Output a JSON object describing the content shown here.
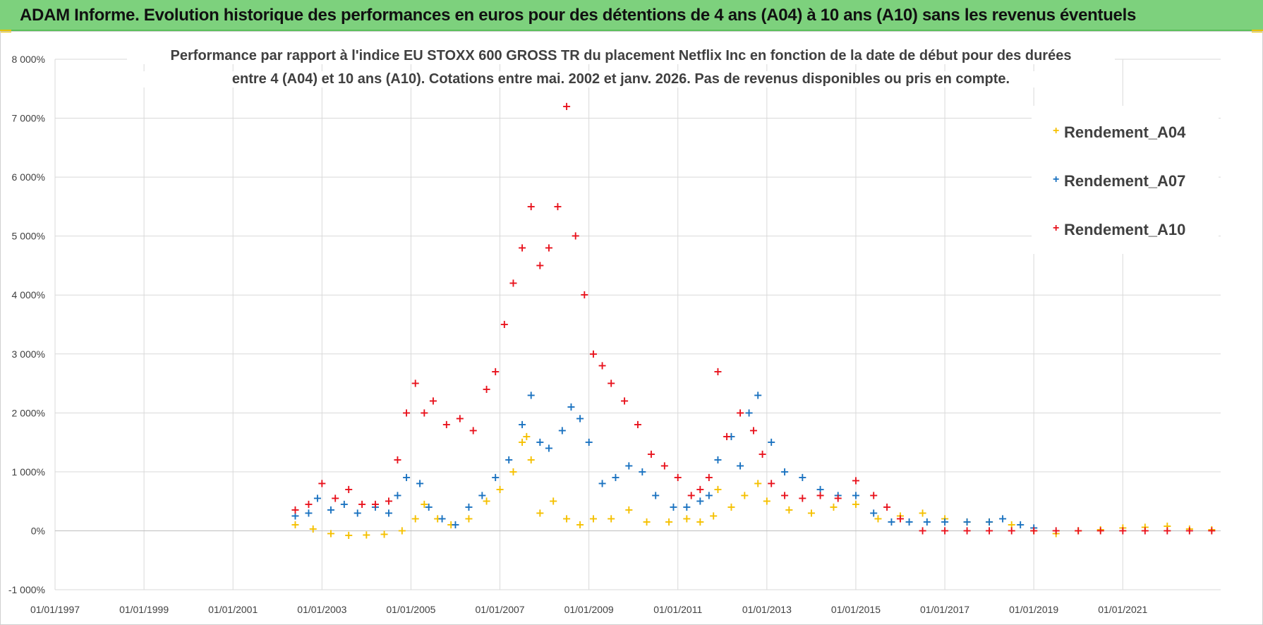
{
  "header": {
    "title": "ADAM Informe. Evolution historique des performances en euros pour des détentions de 4 ans (A04) à 10 ans (A10) sans les revenus éventuels"
  },
  "colors": {
    "a04": "#f5c000",
    "a07": "#1a72c0",
    "a10": "#e8121c",
    "grid": "#d9d9d9",
    "banner": "#7dd17d"
  },
  "chart_data": {
    "type": "scatter",
    "title_line1": "Performance par rapport à l'indice EU STOXX 600 GROSS TR  du placement Netflix Inc en fonction de la date de début pour des durées",
    "title_line2": "entre 4 (A04) et 10 ans (A10).  Cotations entre mai. 2002 et janv. 2026.  Pas de revenus disponibles ou pris en compte.",
    "xlabel": "",
    "ylabel": "",
    "xlim": [
      1997.0,
      2023.2
    ],
    "ylim": [
      -1000,
      8000
    ],
    "y_ticks": [
      -1000,
      0,
      1000,
      2000,
      3000,
      4000,
      5000,
      6000,
      7000,
      8000
    ],
    "y_tick_labels": [
      "-1 000%",
      "0%",
      "1 000%",
      "2 000%",
      "3 000%",
      "4 000%",
      "5 000%",
      "6 000%",
      "7 000%",
      "8 000%"
    ],
    "x_ticks": [
      1997,
      1999,
      2001,
      2003,
      2005,
      2007,
      2009,
      2011,
      2013,
      2015,
      2017,
      2019,
      2021
    ],
    "x_tick_labels": [
      "01/01/1997",
      "01/01/1999",
      "01/01/2001",
      "01/01/2003",
      "01/01/2005",
      "01/01/2007",
      "01/01/2009",
      "01/01/2011",
      "01/01/2013",
      "01/01/2015",
      "01/01/2017",
      "01/01/2019",
      "01/01/2021"
    ],
    "legend_position": "top-right",
    "series": [
      {
        "name": "Rendement_A04",
        "x": [
          2002.4,
          2002.8,
          2003.2,
          2003.6,
          2004.0,
          2004.4,
          2004.8,
          2005.1,
          2005.3,
          2005.6,
          2005.9,
          2006.3,
          2006.7,
          2007.0,
          2007.3,
          2007.5,
          2007.6,
          2007.7,
          2007.9,
          2008.2,
          2008.5,
          2008.8,
          2009.1,
          2009.5,
          2009.9,
          2010.3,
          2010.8,
          2011.2,
          2011.5,
          2011.8,
          2011.9,
          2012.2,
          2012.5,
          2012.8,
          2013.0,
          2013.5,
          2014.0,
          2014.5,
          2015.0,
          2015.5,
          2016.0,
          2016.5,
          2017.0,
          2017.5,
          2018.0,
          2018.5,
          2019.0,
          2019.5,
          2020.0,
          2020.5,
          2021.0,
          2021.5,
          2022.0,
          2022.5,
          2023.0
        ],
        "values": [
          100,
          30,
          -50,
          -80,
          -70,
          -60,
          0,
          200,
          450,
          200,
          100,
          200,
          500,
          700,
          1000,
          1500,
          1600,
          1200,
          300,
          500,
          200,
          100,
          200,
          200,
          350,
          150,
          150,
          200,
          150,
          250,
          700,
          400,
          600,
          800,
          500,
          350,
          300,
          400,
          450,
          200,
          250,
          300,
          200,
          150,
          150,
          100,
          0,
          -50,
          0,
          20,
          50,
          60,
          80,
          30,
          20
        ]
      },
      {
        "name": "Rendement_A07",
        "x": [
          2002.4,
          2002.7,
          2002.9,
          2003.2,
          2003.5,
          2003.8,
          2004.2,
          2004.5,
          2004.7,
          2004.9,
          2005.2,
          2005.4,
          2005.7,
          2006.0,
          2006.3,
          2006.6,
          2006.9,
          2007.2,
          2007.5,
          2007.7,
          2007.9,
          2008.1,
          2008.4,
          2008.6,
          2008.8,
          2009.0,
          2009.3,
          2009.6,
          2009.9,
          2010.2,
          2010.5,
          2010.9,
          2011.2,
          2011.5,
          2011.7,
          2011.9,
          2012.2,
          2012.4,
          2012.6,
          2012.8,
          2013.1,
          2013.4,
          2013.8,
          2014.2,
          2014.6,
          2015.0,
          2015.4,
          2015.8,
          2016.2,
          2016.6,
          2017.0,
          2017.5,
          2018.0,
          2018.3,
          2018.7,
          2019.0
        ],
        "values": [
          250,
          300,
          550,
          350,
          450,
          300,
          400,
          300,
          600,
          900,
          800,
          400,
          200,
          100,
          400,
          600,
          900,
          1200,
          1800,
          2300,
          1500,
          1400,
          1700,
          2100,
          1900,
          1500,
          800,
          900,
          1100,
          1000,
          600,
          400,
          400,
          500,
          600,
          1200,
          1600,
          1100,
          2000,
          2300,
          1500,
          1000,
          900,
          700,
          600,
          600,
          300,
          150,
          150,
          150,
          150,
          150,
          150,
          200,
          100,
          50
        ]
      },
      {
        "name": "Rendement_A10",
        "x": [
          2002.4,
          2002.7,
          2003.0,
          2003.3,
          2003.6,
          2003.9,
          2004.2,
          2004.5,
          2004.7,
          2004.9,
          2005.1,
          2005.3,
          2005.5,
          2005.8,
          2006.1,
          2006.4,
          2006.7,
          2006.9,
          2007.1,
          2007.3,
          2007.5,
          2007.7,
          2007.9,
          2008.1,
          2008.3,
          2008.5,
          2008.7,
          2008.9,
          2009.1,
          2009.3,
          2009.5,
          2009.8,
          2010.1,
          2010.4,
          2010.7,
          2011.0,
          2011.3,
          2011.5,
          2011.7,
          2011.9,
          2012.1,
          2012.4,
          2012.7,
          2012.9,
          2013.1,
          2013.4,
          2013.8,
          2014.2,
          2014.6,
          2015.0,
          2015.4,
          2015.7,
          2016.0,
          2016.5,
          2017.0,
          2017.5,
          2018.0,
          2018.5,
          2019.0,
          2019.5,
          2020.0,
          2020.5,
          2021.0,
          2021.5,
          2022.0,
          2022.5,
          2023.0
        ],
        "values": [
          350,
          450,
          800,
          550,
          700,
          450,
          450,
          500,
          1200,
          2000,
          2500,
          2000,
          2200,
          1800,
          1900,
          1700,
          2400,
          2700,
          3500,
          4200,
          4800,
          5500,
          4500,
          4800,
          5500,
          7200,
          5000,
          4000,
          3000,
          2800,
          2500,
          2200,
          1800,
          1300,
          1100,
          900,
          600,
          700,
          900,
          2700,
          1600,
          2000,
          1700,
          1300,
          800,
          600,
          550,
          600,
          550,
          850,
          600,
          400,
          200,
          0,
          0,
          0,
          0,
          0,
          0,
          0,
          0,
          0,
          0,
          0,
          0,
          0,
          0
        ]
      }
    ]
  }
}
